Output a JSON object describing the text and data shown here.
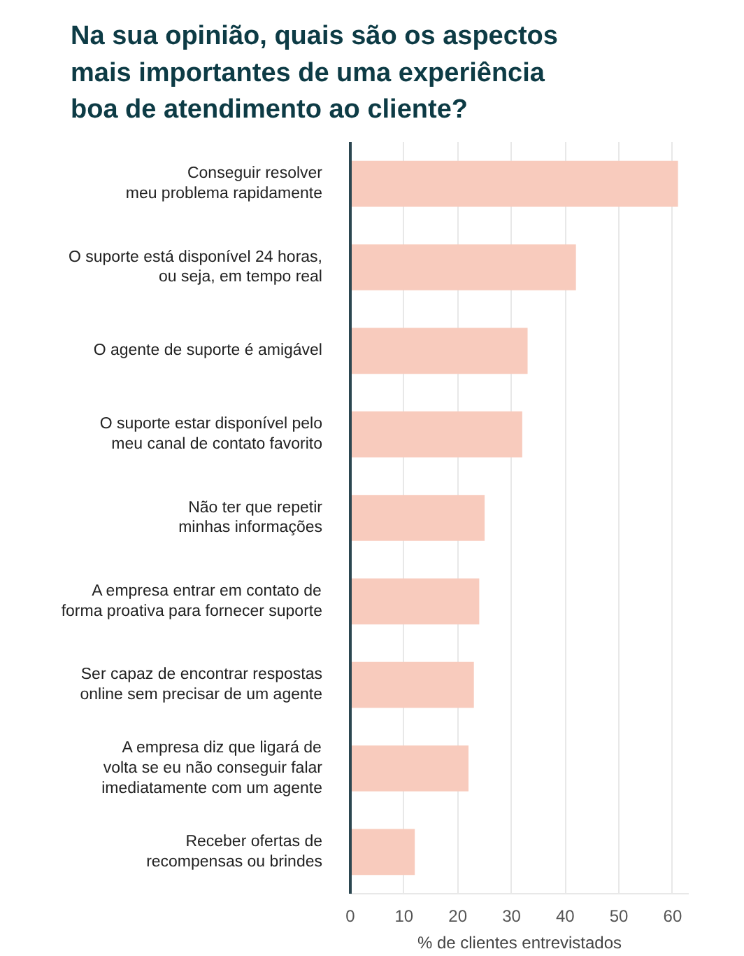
{
  "chart_data": {
    "type": "bar",
    "orientation": "horizontal",
    "title": "Na sua opinião, quais são os aspectos\nmais importantes de uma experiência\nboa de atendimento ao cliente?",
    "xlabel": "% de clientes entrevistados",
    "categories": [
      "Conseguir resolver\nmeu problema rapidamente",
      "O suporte está disponível 24 horas,\nou seja, em tempo real",
      "O agente de suporte é amigável",
      "O suporte estar disponível pelo\nmeu canal de contato favorito",
      "Não ter que repetir\nminhas informações",
      "A empresa entrar em contato de\nforma proativa para fornecer suporte",
      "Ser capaz de encontrar respostas\nonline sem precisar de um agente",
      "A empresa diz que ligará de\nvolta se eu não conseguir falar\nimediatamente com um agente",
      "Receber ofertas de\nrecompensas ou brindes"
    ],
    "values": [
      61,
      42,
      33,
      32,
      25,
      24,
      23,
      22,
      12
    ],
    "color": "#f8cbbd",
    "xlim": [
      0,
      63
    ],
    "xticks": [
      0,
      10,
      20,
      30,
      40,
      50,
      60
    ],
    "grid": "x"
  }
}
